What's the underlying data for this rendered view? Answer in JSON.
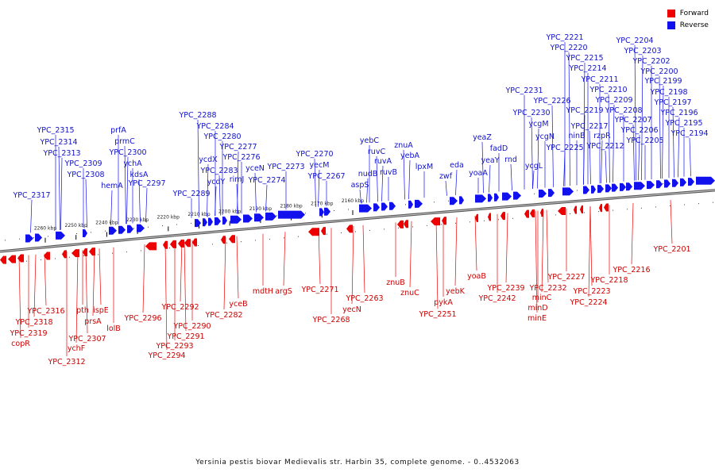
{
  "title": "Yersinia pestis biovar Medievalis str. Harbin 35, complete genome. - 0..4532063",
  "legend": [
    {
      "label": "Forward",
      "color": "#ee0000"
    },
    {
      "label": "Reverse",
      "color": "#1111ee"
    }
  ],
  "colors": {
    "forward": "#ee0000",
    "reverse": "#1111ee",
    "backbone": "#777777",
    "forward_text": "#cc0000",
    "reverse_text": "#1111cc"
  },
  "scale_labels": [
    {
      "kbp": 2260,
      "text": "2260 kbp"
    },
    {
      "kbp": 2250,
      "text": "2250 kbp"
    },
    {
      "kbp": 2240,
      "text": "2240 kbp"
    },
    {
      "kbp": 2230,
      "text": "2230 kbp"
    },
    {
      "kbp": 2220,
      "text": "2220 kbp"
    },
    {
      "kbp": 2210,
      "text": "2210 kbp"
    },
    {
      "kbp": 2200,
      "text": "2200 kbp"
    },
    {
      "kbp": 2190,
      "text": "2190 kbp"
    },
    {
      "kbp": 2180,
      "text": "2180 kbp"
    },
    {
      "kbp": 2170,
      "text": "2170 kbp"
    },
    {
      "kbp": 2160,
      "text": "2160 kbp"
    }
  ],
  "reverse_genes": [
    "YPC_2317",
    "YPC_2315",
    "YPC_2314",
    "YPC_2313",
    "YPC_2309",
    "YPC_2308",
    "hemA",
    "prfA",
    "prmC",
    "YPC_2300",
    "ychA",
    "kdsA",
    "YPC_2297",
    "YPC_2289",
    "YPC_2288",
    "ycdX",
    "YPC_2284",
    "YPC_2283",
    "ycdY",
    "YPC_2280",
    "rimJ",
    "YPC_2277",
    "YPC_2276",
    "yceN",
    "YPC_2274",
    "YPC_2273",
    "YPC_2270",
    "yecM",
    "YPC_2267",
    "aspS",
    "nudB",
    "yebC",
    "ruvC",
    "ruvA",
    "ruvB",
    "znuA",
    "yebA",
    "lpxM",
    "zwf",
    "eda",
    "yoaA",
    "yeaZ",
    "yeaY",
    "fadD",
    "rnd",
    "ycgL",
    "YPC_2231",
    "YPC_2230",
    "ycgM",
    "ycgN",
    "YPC_2226",
    "YPC_2225",
    "YPC_2221",
    "YPC_2220",
    "YPC_2219",
    "ninB",
    "YPC_2217",
    "YPC_2215",
    "YPC_2214",
    "YPC_2212",
    "rzpR",
    "YPC_2211",
    "YPC_2210",
    "YPC_2209",
    "YPC_2208",
    "YPC_2207",
    "YPC_2206",
    "YPC_2205",
    "YPC_2204",
    "YPC_2203",
    "YPC_2202",
    "YPC_2200",
    "YPC_2199",
    "YPC_2198",
    "YPC_2197",
    "YPC_2196",
    "YPC_2195",
    "YPC_2194"
  ],
  "forward_genes": [
    "copR",
    "YPC_2319",
    "YPC_2318",
    "YPC_2316",
    "YPC_2312",
    "ychF",
    "YPC_2307",
    "pth",
    "prsA",
    "ispE",
    "lolB",
    "YPC_2296",
    "YPC_2294",
    "YPC_2293",
    "YPC_2292",
    "YPC_2291",
    "YPC_2290",
    "YPC_2282",
    "yceB",
    "mdtH",
    "argS",
    "YPC_2271",
    "YPC_2268",
    "yecN",
    "YPC_2263",
    "znuB",
    "znuC",
    "YPC_2251",
    "pykA",
    "yebK",
    "yoaB",
    "YPC_2242",
    "YPC_2239",
    "minE",
    "minD",
    "minC",
    "YPC_2232",
    "YPC_2227",
    "YPC_2224",
    "YPC_2223",
    "YPC_2218",
    "YPC_2216",
    "YPC_2201"
  ]
}
